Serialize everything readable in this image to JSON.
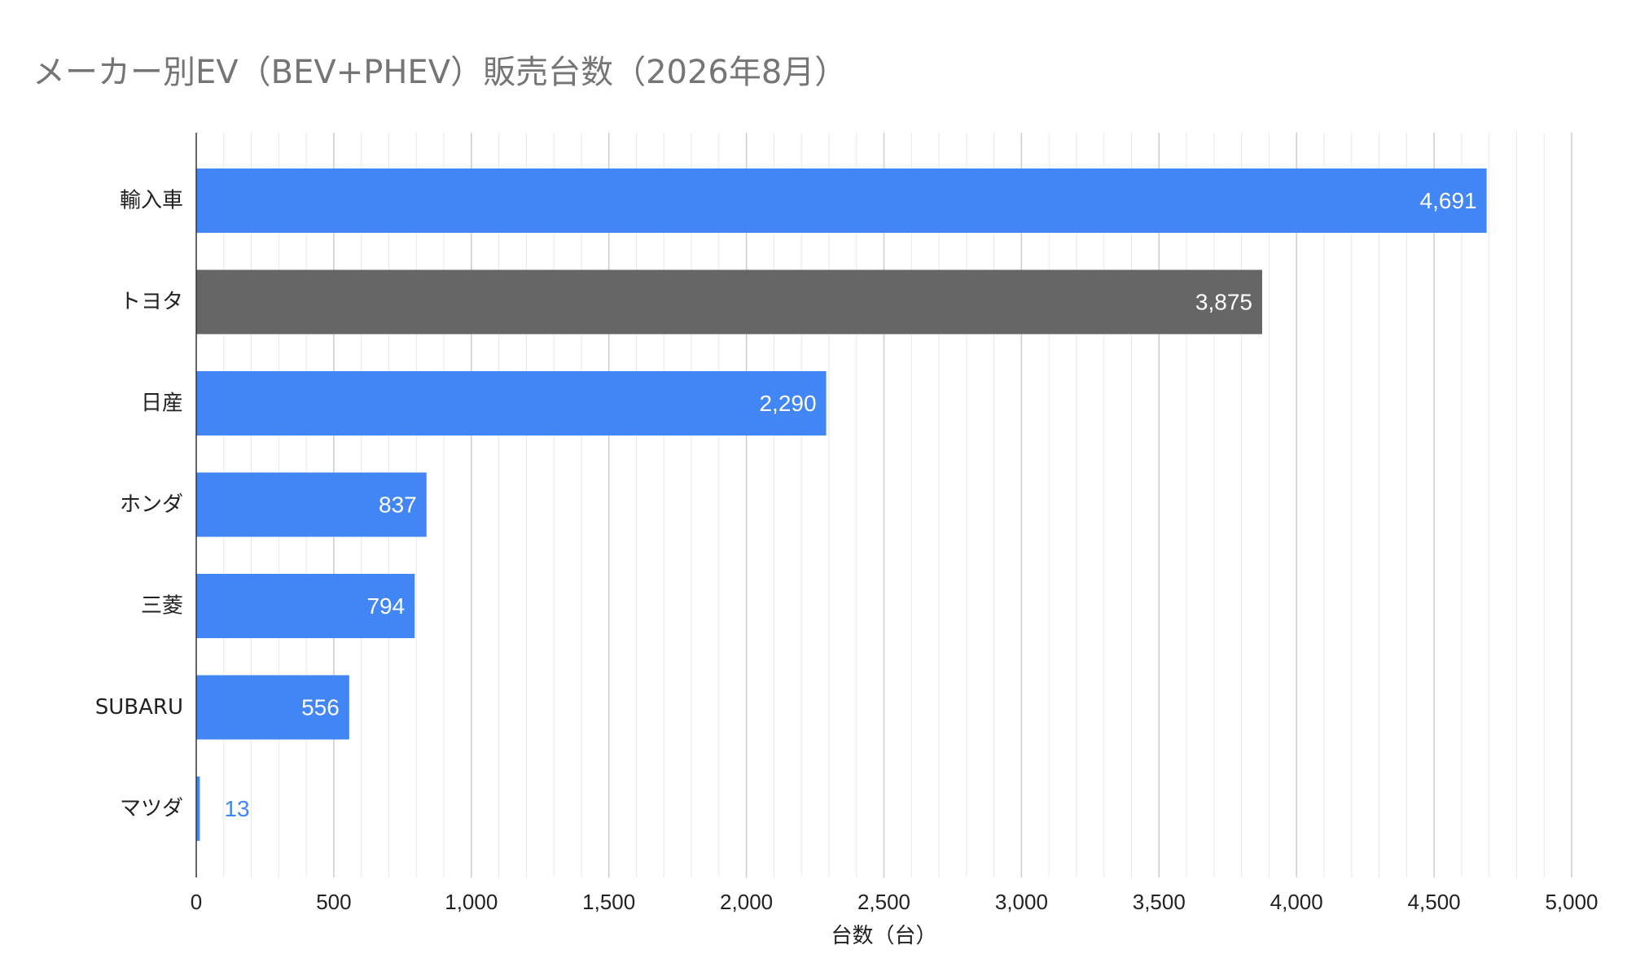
{
  "chart_data": {
    "type": "bar",
    "orientation": "horizontal",
    "title": "メーカー別EV（BEV+PHEV）販売台数（2026年8月）",
    "xlabel": "台数（台）",
    "ylabel": "",
    "categories": [
      "輸入車",
      "トヨタ",
      "日産",
      "ホンダ",
      "三菱",
      "SUBARU",
      "マツダ"
    ],
    "values": [
      4691,
      3875,
      2290,
      837,
      794,
      556,
      13
    ],
    "data_labels": [
      "4,691",
      "3,875",
      "2,290",
      "837",
      "794",
      "556",
      "13"
    ],
    "bar_colors": [
      "#4285f4",
      "#666666",
      "#4285f4",
      "#4285f4",
      "#4285f4",
      "#4285f4",
      "#4285f4"
    ],
    "xlim": [
      0,
      5000
    ],
    "x_ticks": [
      0,
      500,
      1000,
      1500,
      2000,
      2500,
      3000,
      3500,
      4000,
      4500,
      5000
    ],
    "x_tick_labels": [
      "0",
      "500",
      "1,000",
      "1,500",
      "2,000",
      "2,500",
      "3,000",
      "3,500",
      "4,000",
      "4,500",
      "5,000"
    ],
    "minor_gridlines": true,
    "legend": "none"
  },
  "colors": {
    "label_inside": "#ffffff",
    "label_outside": "#4285f4",
    "major_grid": "#cccccc",
    "minor_grid": "#e8e8e8",
    "axis": "#333333",
    "text": "#222222",
    "title": "#757575"
  }
}
